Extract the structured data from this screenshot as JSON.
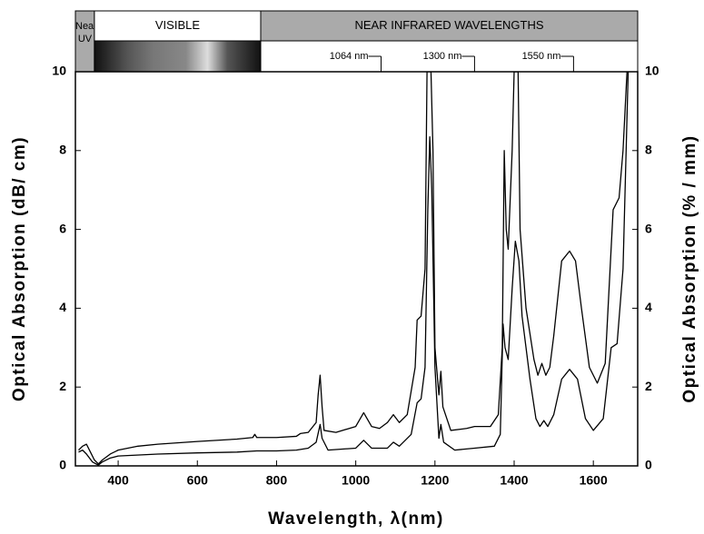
{
  "chart_data": {
    "type": "line",
    "xlabel": "Wavelength, λ(nm)",
    "ylabel": "Optical Absorption (dB/ cm)",
    "y2label": "Optical Absorption (% / mm)",
    "xlim": [
      292,
      1712
    ],
    "xticks": [
      400,
      600,
      800,
      1000,
      1200,
      1400,
      1600
    ],
    "ylim": [
      0,
      10
    ],
    "yticks": [
      0,
      2,
      4,
      6,
      8,
      10
    ],
    "y2lim": [
      0,
      10
    ],
    "y2ticks": [
      0,
      2,
      4,
      6,
      8,
      10
    ],
    "bands": [
      {
        "label": "Near UV",
        "from": 292,
        "to": 340
      },
      {
        "label": "VISIBLE",
        "from": 340,
        "to": 760
      },
      {
        "label": "NEAR INFRARED WAVELENGTHS",
        "from": 760,
        "to": 1712
      }
    ],
    "annotations": [
      {
        "x": 1064,
        "label": "1064 nm"
      },
      {
        "x": 1300,
        "label": "1300 nm"
      },
      {
        "x": 1550,
        "label": "1550 nm"
      }
    ],
    "series": [
      {
        "color": "#000000",
        "x": [
          300,
          310,
          320,
          330,
          340,
          350,
          360,
          380,
          400,
          450,
          500,
          600,
          700,
          740,
          745,
          750,
          800,
          850,
          860,
          880,
          900,
          905,
          910,
          915,
          920,
          950,
          1000,
          1020,
          1040,
          1060,
          1080,
          1095,
          1110,
          1130,
          1150,
          1155,
          1165,
          1175,
          1180,
          1190,
          1195,
          1200,
          1210,
          1215,
          1220,
          1240,
          1280,
          1300,
          1340,
          1360,
          1370,
          1375,
          1380,
          1385,
          1395,
          1400,
          1410,
          1415,
          1430,
          1450,
          1460,
          1470,
          1480,
          1490,
          1500,
          1520,
          1540,
          1555,
          1570,
          1590,
          1610,
          1630,
          1650,
          1665,
          1675,
          1685
        ],
        "values": [
          0.4,
          0.5,
          0.55,
          0.35,
          0.15,
          0.05,
          0.15,
          0.3,
          0.4,
          0.5,
          0.55,
          0.62,
          0.68,
          0.72,
          0.8,
          0.72,
          0.72,
          0.75,
          0.82,
          0.85,
          1.1,
          1.8,
          2.3,
          1.5,
          0.9,
          0.85,
          1.0,
          1.35,
          1.0,
          0.95,
          1.1,
          1.3,
          1.1,
          1.3,
          2.5,
          3.7,
          3.8,
          5,
          10,
          10,
          8,
          3,
          1.8,
          2.4,
          1.5,
          0.9,
          0.95,
          1.0,
          1.0,
          1.3,
          3.0,
          8.0,
          6.0,
          5.5,
          8,
          10,
          10,
          6,
          4,
          2.7,
          2.3,
          2.6,
          2.3,
          2.5,
          3.3,
          5.2,
          5.45,
          5.2,
          4.0,
          2.5,
          2.1,
          2.6,
          6.5,
          6.8,
          8,
          10
        ]
      },
      {
        "color": "#000000",
        "axis": "y2",
        "x": [
          300,
          310,
          320,
          335,
          350,
          360,
          380,
          400,
          500,
          600,
          700,
          750,
          800,
          850,
          880,
          900,
          910,
          915,
          930,
          1000,
          1020,
          1040,
          1080,
          1095,
          1110,
          1140,
          1155,
          1165,
          1175,
          1182,
          1187,
          1192,
          1200,
          1210,
          1215,
          1222,
          1250,
          1300,
          1350,
          1365,
          1372,
          1377,
          1385,
          1395,
          1403,
          1412,
          1420,
          1440,
          1455,
          1465,
          1475,
          1485,
          1500,
          1520,
          1540,
          1560,
          1580,
          1600,
          1625,
          1645,
          1660,
          1675,
          1688
        ],
        "values": [
          0.35,
          0.4,
          0.3,
          0.1,
          0.02,
          0.1,
          0.2,
          0.25,
          0.3,
          0.33,
          0.35,
          0.38,
          0.38,
          0.4,
          0.45,
          0.6,
          1.05,
          0.7,
          0.4,
          0.45,
          0.65,
          0.45,
          0.45,
          0.6,
          0.5,
          0.8,
          1.6,
          1.7,
          2.5,
          6.5,
          8.35,
          7,
          2.5,
          0.7,
          1.05,
          0.6,
          0.4,
          0.45,
          0.5,
          0.8,
          3.6,
          3.0,
          2.7,
          4.5,
          5.7,
          5.2,
          3.8,
          2.2,
          1.2,
          1.0,
          1.15,
          1.0,
          1.3,
          2.2,
          2.45,
          2.2,
          1.2,
          0.9,
          1.2,
          3.0,
          3.1,
          5,
          10
        ]
      }
    ]
  }
}
